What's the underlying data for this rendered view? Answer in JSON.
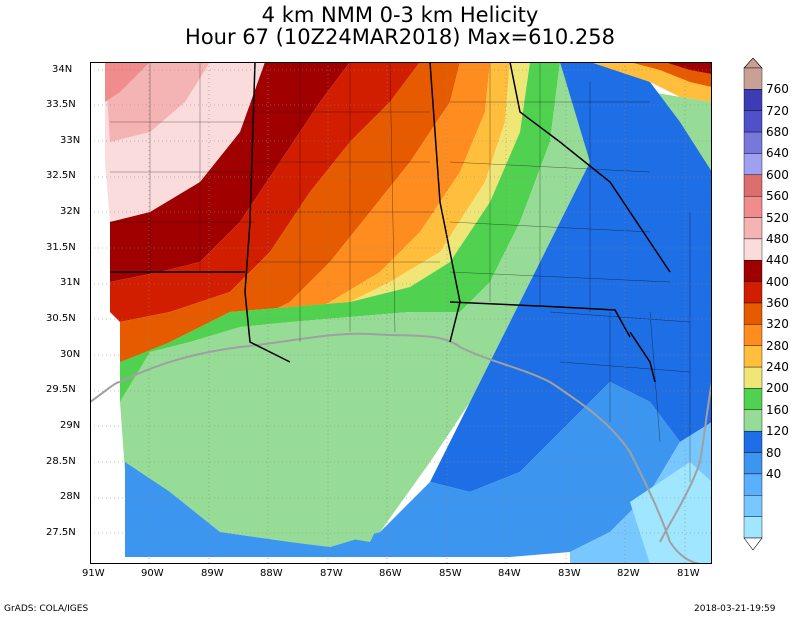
{
  "title": {
    "line1": "4 km NMM 0-3 km Helicity",
    "line2": "Hour 67 (10Z24MAR2018) Max=610.258"
  },
  "axes": {
    "lat_labels": [
      "34N",
      "33.5N",
      "33N",
      "32.5N",
      "32N",
      "31.5N",
      "31N",
      "30.5N",
      "30N",
      "29.5N",
      "29N",
      "28.5N",
      "28N",
      "27.5N"
    ],
    "lon_labels": [
      "91W",
      "90W",
      "89W",
      "88W",
      "87W",
      "86W",
      "85W",
      "84W",
      "83W",
      "82W",
      "81W"
    ],
    "lat_range": [
      27.1,
      34.1
    ],
    "lon_range": [
      -91.0,
      -80.6
    ]
  },
  "colorbar": {
    "levels": [
      "760",
      "720",
      "680",
      "640",
      "600",
      "560",
      "520",
      "480",
      "440",
      "400",
      "360",
      "320",
      "280",
      "240",
      "200",
      "160",
      "120",
      "80",
      "40"
    ],
    "colors": [
      "#a0e6ff",
      "#78c8ff",
      "#5aafff",
      "#3c96f0",
      "#1e6ee6",
      "#96dc96",
      "#50d250",
      "#f0e678",
      "#ffbe3c",
      "#ff8c1e",
      "#e65a00",
      "#d21e00",
      "#a00000",
      "#fadcdc",
      "#f5b4b4",
      "#f08c8c",
      "#dc6e6e",
      "#a0a0f0",
      "#7878dc",
      "#5050c8",
      "#3c3cb4",
      "#c8a096"
    ]
  },
  "footer": {
    "left": "GrADS: COLA/IGES",
    "right": "2018-03-21-19:59"
  }
}
